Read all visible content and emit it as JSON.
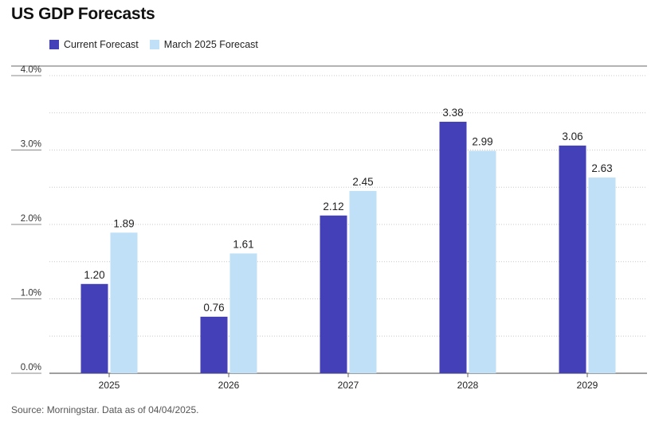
{
  "title": "US GDP Forecasts",
  "source": "Source: Morningstar. Data as of 04/04/2025.",
  "colors": {
    "current": "#4340b8",
    "march": "#bfe0f7"
  },
  "chart_data": {
    "type": "bar",
    "title": "US GDP Forecasts",
    "categories": [
      "2025",
      "2026",
      "2027",
      "2028",
      "2029"
    ],
    "series": [
      {
        "name": "Current Forecast",
        "values": [
          1.2,
          0.76,
          2.12,
          3.38,
          3.06
        ],
        "labels": [
          "1.20",
          "0.76",
          "2.12",
          "3.38",
          "3.06"
        ]
      },
      {
        "name": "March 2025 Forecast",
        "values": [
          1.89,
          1.61,
          2.45,
          2.99,
          2.63
        ],
        "labels": [
          "1.89",
          "1.61",
          "2.45",
          "2.99",
          "2.63"
        ]
      }
    ],
    "ylim": [
      0,
      4
    ],
    "yticks": [
      0,
      1,
      2,
      3,
      4
    ],
    "ytick_labels": [
      "0.0%",
      "1.0%",
      "2.0%",
      "3.0%",
      "4.0%"
    ],
    "grid": true,
    "legend": "top-left"
  }
}
